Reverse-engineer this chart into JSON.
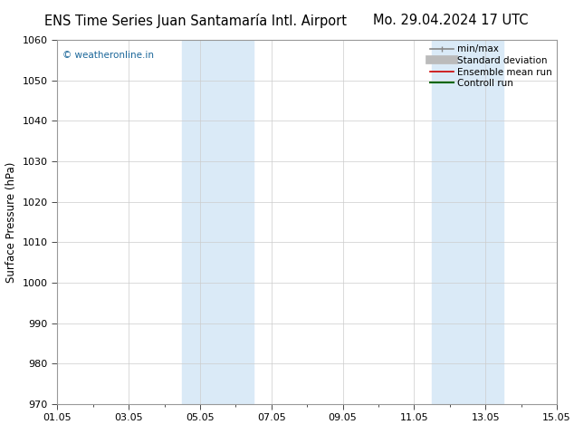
{
  "title_left": "ENS Time Series Juan Santamaría Intl. Airport",
  "title_right": "Mo. 29.04.2024 17 UTC",
  "ylabel": "Surface Pressure (hPa)",
  "ylim": [
    970,
    1060
  ],
  "yticks": [
    970,
    980,
    990,
    1000,
    1010,
    1020,
    1030,
    1040,
    1050,
    1060
  ],
  "xlim_num": [
    0,
    14
  ],
  "xtick_labels": [
    "01.05",
    "03.05",
    "05.05",
    "07.05",
    "09.05",
    "11.05",
    "13.05",
    "15.05"
  ],
  "xtick_positions": [
    0,
    2,
    4,
    6,
    8,
    10,
    12,
    14
  ],
  "shaded_bands": [
    {
      "x_start": 3.5,
      "x_end": 5.5,
      "color": "#daeaf7"
    },
    {
      "x_start": 10.5,
      "x_end": 12.5,
      "color": "#daeaf7"
    }
  ],
  "watermark": "© weatheronline.in",
  "watermark_color": "#1a6699",
  "legend_items": [
    {
      "label": "min/max",
      "color": "#888888",
      "lw": 1.2,
      "style": "solid",
      "type": "minmax"
    },
    {
      "label": "Standard deviation",
      "color": "#bbbbbb",
      "lw": 7,
      "style": "solid",
      "type": "thick"
    },
    {
      "label": "Ensemble mean run",
      "color": "#cc0000",
      "lw": 1.2,
      "style": "solid",
      "type": "line"
    },
    {
      "label": "Controll run",
      "color": "#006600",
      "lw": 1.5,
      "style": "solid",
      "type": "line"
    }
  ],
  "bg_color": "#ffffff",
  "grid_color": "#cccccc",
  "title_fontsize": 10.5,
  "tick_fontsize": 8,
  "ylabel_fontsize": 8.5,
  "watermark_fontsize": 7.5,
  "legend_fontsize": 7.5
}
